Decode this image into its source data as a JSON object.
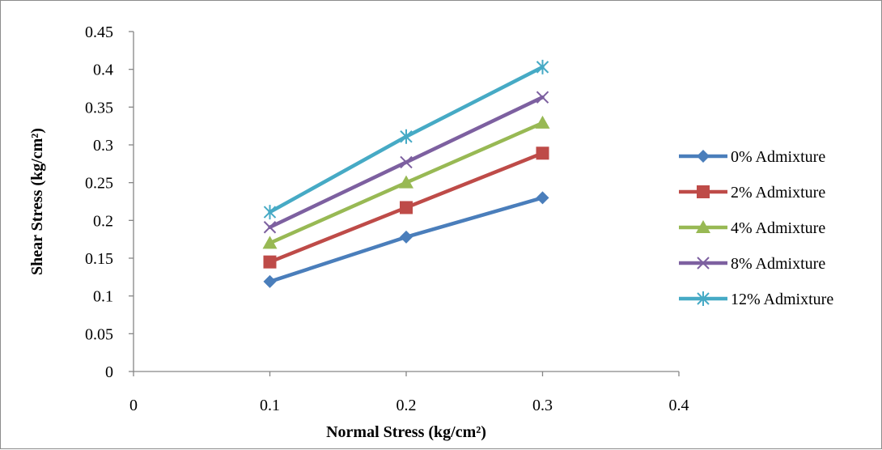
{
  "chart_data": {
    "type": "line",
    "title": "",
    "xlabel": "Normal Stress (kg/cm²)",
    "ylabel": "Shear Stress (kg/cm²)",
    "xlim": [
      0,
      0.4
    ],
    "ylim": [
      0,
      0.45
    ],
    "x_ticks": [
      "0",
      "0.1",
      "0.2",
      "0.3",
      "0.4"
    ],
    "y_ticks": [
      "0",
      "0.05",
      "0.1",
      "0.15",
      "0.2",
      "0.25",
      "0.3",
      "0.35",
      "0.4",
      "0.45"
    ],
    "grid": false,
    "legend_position": "right",
    "x": [
      0.1,
      0.2,
      0.3
    ],
    "series": [
      {
        "name": "0% Admixture",
        "values": [
          0.119,
          0.178,
          0.23
        ],
        "color": "#4a7ebb",
        "marker": "diamond"
      },
      {
        "name": "2% Admixture",
        "values": [
          0.145,
          0.217,
          0.289
        ],
        "color": "#be4b48",
        "marker": "square"
      },
      {
        "name": "4% Admixture",
        "values": [
          0.17,
          0.25,
          0.329
        ],
        "color": "#98b954",
        "marker": "triangle"
      },
      {
        "name": "8% Admixture",
        "values": [
          0.191,
          0.277,
          0.363
        ],
        "color": "#7d60a0",
        "marker": "x"
      },
      {
        "name": "12% Admixture",
        "values": [
          0.211,
          0.311,
          0.403
        ],
        "color": "#46aac5",
        "marker": "star"
      }
    ]
  }
}
